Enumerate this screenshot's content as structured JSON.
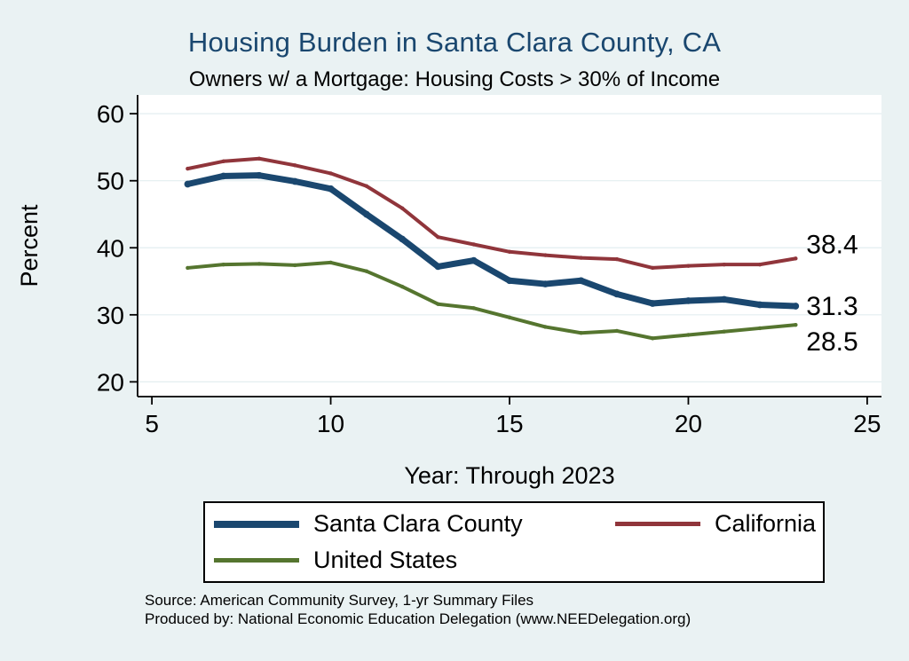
{
  "header": {
    "title": "Housing Burden in Santa Clara County, CA",
    "subtitle": "Owners w/ a Mortgage: Housing Costs > 30% of Income",
    "title_color": "#1a476f"
  },
  "footer": {
    "source_line1": "Source: American Community Survey, 1-yr Summary Files",
    "source_line2": "Produced by: National Economic Education Delegation (www.NEEDelegation.org)"
  },
  "chart_data": {
    "type": "line",
    "title": "Housing Burden in Santa Clara County, CA",
    "subtitle": "Owners w/ a Mortgage: Housing Costs > 30% of Income",
    "xlabel": "Year: Through 2023",
    "ylabel": "Percent",
    "x": [
      6,
      7,
      8,
      9,
      10,
      11,
      12,
      13,
      14,
      15,
      16,
      17,
      18,
      19,
      20,
      21,
      22,
      23
    ],
    "series": [
      {
        "name": "Santa Clara County",
        "color": "#1a476f",
        "width": 7,
        "values": [
          49.5,
          50.7,
          50.8,
          49.9,
          48.8,
          45.0,
          41.3,
          37.2,
          38.1,
          35.1,
          34.6,
          35.1,
          33.1,
          31.7,
          32.1,
          32.3,
          31.5,
          31.3
        ]
      },
      {
        "name": "California",
        "color": "#90353b",
        "width": 4,
        "values": [
          51.8,
          52.9,
          53.3,
          52.3,
          51.1,
          49.2,
          45.9,
          41.6,
          40.5,
          39.4,
          38.9,
          38.5,
          38.3,
          37.0,
          37.3,
          37.5,
          37.5,
          38.4
        ]
      },
      {
        "name": "United States",
        "color": "#55752f",
        "width": 4,
        "values": [
          37.0,
          37.5,
          37.6,
          37.4,
          37.8,
          36.5,
          34.2,
          31.6,
          31.0,
          29.6,
          28.2,
          27.3,
          27.6,
          26.5,
          27.0,
          27.5,
          28.0,
          28.5
        ]
      }
    ],
    "xlim": [
      4.6,
      25.4
    ],
    "ylim": [
      17.8,
      62.8
    ],
    "xticks": [
      5,
      10,
      15,
      20,
      25
    ],
    "yticks": [
      20,
      30,
      40,
      50,
      60
    ],
    "grid": true,
    "grid_color": "#e3eef0",
    "plot_background": "#ffffff",
    "page_background": "#eaf2f3",
    "legend_position": "bottom",
    "end_labels": [
      {
        "text": "38.4",
        "value": 38.4,
        "dy": -16
      },
      {
        "text": "31.3",
        "value": 31.3,
        "dy": 0
      },
      {
        "text": "28.5",
        "value": 28.5,
        "dy": 19
      }
    ]
  }
}
